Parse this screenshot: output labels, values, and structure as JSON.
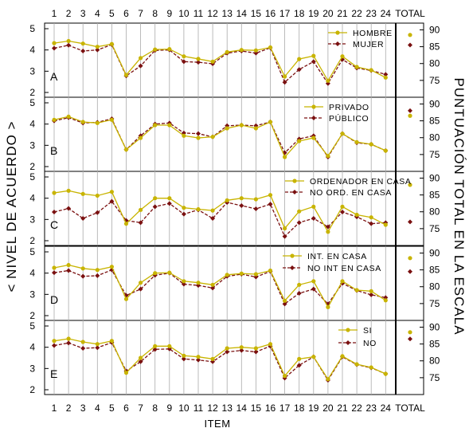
{
  "chart_data": {
    "type": "line",
    "x": [
      1,
      2,
      3,
      4,
      5,
      6,
      7,
      8,
      9,
      10,
      11,
      12,
      13,
      14,
      15,
      16,
      17,
      18,
      19,
      20,
      21,
      22,
      23,
      24
    ],
    "total_label": "TOTAL",
    "xlabel": "ITEM",
    "ylabel_left": "< NIVEL DE ACUERDO >",
    "ylabel_right": "PUNTUACIÓN TOTAL EN LA ESCALA",
    "ylim_left": [
      2,
      5
    ],
    "yticks_left": [
      2,
      3,
      4,
      5
    ],
    "ylim_right": [
      70,
      92
    ],
    "yticks_right": [
      75,
      80,
      85,
      90
    ],
    "colors": {
      "series1": "#c8b400",
      "series2": "#7a1010"
    },
    "panels": [
      {
        "letter": "A",
        "series": [
          {
            "name": "HOMBRE",
            "values": [
              4.32,
              4.42,
              4.3,
              4.15,
              4.28,
              2.82,
              3.62,
              4.02,
              4.04,
              3.7,
              3.58,
              3.45,
              3.9,
              4.0,
              3.98,
              4.12,
              2.75,
              3.57,
              3.72,
              2.55,
              3.7,
              3.2,
              3.05,
              2.7
            ],
            "total": 88.5
          },
          {
            "name": "MUJER",
            "values": [
              4.08,
              4.22,
              3.95,
              4.0,
              4.25,
              2.78,
              3.25,
              3.98,
              4.0,
              3.45,
              3.42,
              3.35,
              3.85,
              3.95,
              3.85,
              4.1,
              2.48,
              3.08,
              3.45,
              2.42,
              3.55,
              3.15,
              3.03,
              2.85
            ],
            "total": 85.5
          }
        ]
      },
      {
        "letter": "B",
        "series": [
          {
            "name": "PRIVADO",
            "values": [
              4.2,
              4.35,
              4.1,
              4.05,
              4.2,
              2.8,
              3.35,
              3.95,
              3.95,
              3.45,
              3.35,
              3.4,
              3.8,
              3.95,
              3.8,
              4.1,
              2.45,
              3.2,
              3.35,
              2.5,
              3.55,
              3.15,
              3.05,
              2.75
            ],
            "total": 86.5
          },
          {
            "name": "PÚBLICO",
            "values": [
              4.15,
              4.3,
              4.05,
              4.08,
              4.25,
              2.8,
              3.45,
              4.0,
              4.05,
              3.58,
              3.55,
              3.4,
              3.92,
              3.95,
              3.92,
              4.1,
              2.65,
              3.3,
              3.45,
              2.45,
              3.55,
              3.12,
              3.05,
              2.75
            ],
            "total": 88.0
          }
        ]
      },
      {
        "letter": "C",
        "series": [
          {
            "name": "ORDENADOR EN CASA",
            "values": [
              4.25,
              4.35,
              4.2,
              4.12,
              4.3,
              2.8,
              3.45,
              4.0,
              4.0,
              3.55,
              3.48,
              3.42,
              3.9,
              4.0,
              3.95,
              4.15,
              2.58,
              3.38,
              3.6,
              2.42,
              3.6,
              3.22,
              3.1,
              2.75
            ],
            "total": 88.0
          },
          {
            "name": "NO ORD. EN CASA",
            "values": [
              3.35,
              3.52,
              3.05,
              3.32,
              3.85,
              2.95,
              2.85,
              3.6,
              3.75,
              3.25,
              3.45,
              3.05,
              3.8,
              3.65,
              3.5,
              3.72,
              2.2,
              2.85,
              3.05,
              2.65,
              3.35,
              3.12,
              2.8,
              2.85
            ],
            "total": 77.0
          }
        ]
      },
      {
        "letter": "D",
        "series": [
          {
            "name": "INT. EN CASA",
            "values": [
              4.25,
              4.38,
              4.22,
              4.15,
              4.3,
              2.78,
              3.55,
              4.0,
              4.02,
              3.62,
              3.55,
              3.45,
              3.92,
              3.98,
              3.95,
              4.12,
              2.7,
              3.45,
              3.62,
              2.4,
              3.62,
              3.2,
              3.15,
              2.72
            ],
            "total": 88.5
          },
          {
            "name": "NO INT EN CASA",
            "values": [
              4.02,
              4.12,
              3.85,
              3.88,
              4.15,
              2.95,
              3.25,
              3.9,
              4.0,
              3.48,
              3.42,
              3.3,
              3.85,
              3.95,
              3.82,
              4.08,
              2.55,
              3.05,
              3.25,
              2.55,
              3.52,
              3.18,
              2.98,
              2.85
            ],
            "total": 84.5
          }
        ]
      },
      {
        "letter": "E",
        "series": [
          {
            "name": "SI",
            "values": [
              4.3,
              4.4,
              4.25,
              4.15,
              4.3,
              2.8,
              3.5,
              4.05,
              4.05,
              3.6,
              3.55,
              3.45,
              3.95,
              4.0,
              3.95,
              4.15,
              2.65,
              3.45,
              3.55,
              2.5,
              3.58,
              3.2,
              3.05,
              2.75
            ],
            "total": 88.5
          },
          {
            "name": "NO",
            "values": [
              4.08,
              4.2,
              3.95,
              3.98,
              4.22,
              2.88,
              3.32,
              3.9,
              3.92,
              3.45,
              3.4,
              3.32,
              3.78,
              3.85,
              3.78,
              4.05,
              2.55,
              3.15,
              3.55,
              2.45,
              3.55,
              3.18,
              3.03,
              2.75
            ],
            "total": 86.5
          }
        ]
      }
    ]
  }
}
